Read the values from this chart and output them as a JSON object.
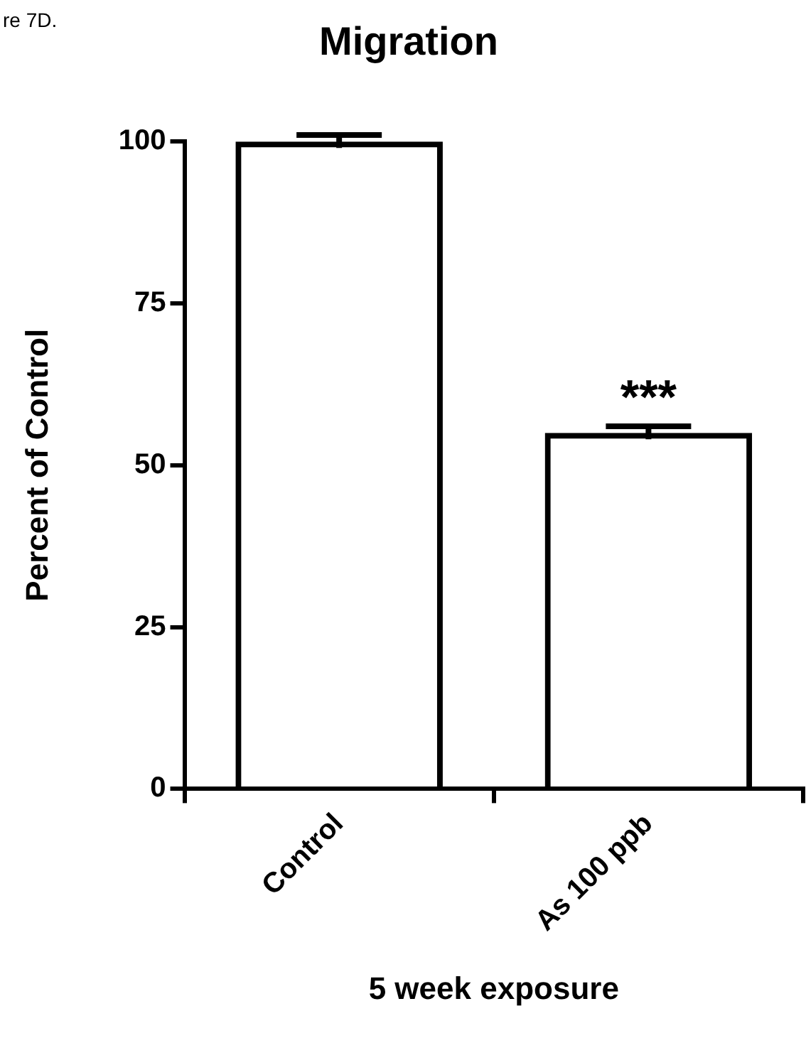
{
  "chart_data": {
    "type": "bar",
    "title": "Migration",
    "xlabel": "5 week exposure",
    "ylabel": "Percent of Control",
    "categories": [
      "Control",
      "As 100 ppb"
    ],
    "values": [
      100,
      55
    ],
    "errors": [
      1,
      1
    ],
    "color": "#000000",
    "ylim": [
      0,
      100
    ],
    "yticks": [
      0,
      25,
      50,
      75,
      100
    ],
    "grid": false,
    "legend": false,
    "annotations": [
      "re 7D.",
      {
        "text": "***",
        "x": "As 100 ppb",
        "y": 55
      }
    ]
  }
}
